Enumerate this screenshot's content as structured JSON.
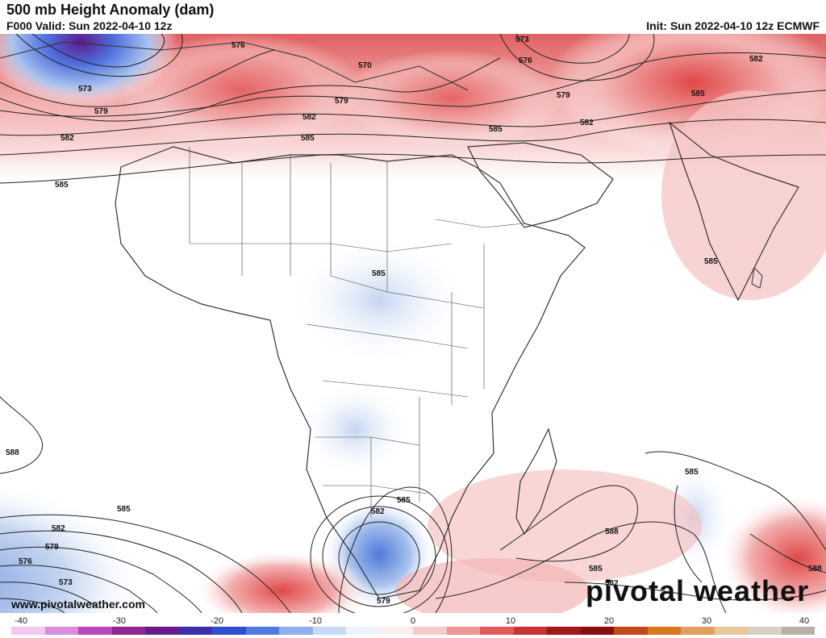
{
  "header": {
    "title": "500 mb Height Anomaly (dam)",
    "valid": "F000 Valid: Sun 2022-04-10 12z",
    "init": "Init: Sun 2022-04-10 12z ECMWF"
  },
  "footer": {
    "website": "www.pivotalweather.com",
    "brand": "pivotal weather"
  },
  "colorbar": {
    "ticks": [
      "-40",
      "-30",
      "-20",
      "-10",
      "0",
      "10",
      "20",
      "30",
      "40"
    ],
    "colors": [
      "#f0c8f0",
      "#d88ed8",
      "#b848b8",
      "#902890",
      "#6a1b8a",
      "#3a2fa8",
      "#2f4fd0",
      "#4f7ae0",
      "#8fb0ea",
      "#c9d9f3",
      "#eef2fa",
      "#fbeeee",
      "#f6c9c9",
      "#ef9595",
      "#e05a5a",
      "#c83232",
      "#a01818",
      "#8a1010",
      "#c0481a",
      "#d8781e",
      "#e0a060",
      "#e8c89a",
      "#d8cfc4",
      "#b8b0a8"
    ]
  },
  "contour_labels": [
    {
      "text": "576",
      "id": "label-576-a"
    },
    {
      "text": "573",
      "id": "label-573-a"
    },
    {
      "text": "579",
      "id": "label-579-a"
    },
    {
      "text": "582",
      "id": "label-582-a"
    },
    {
      "text": "585",
      "id": "label-585-a"
    },
    {
      "text": "570",
      "id": "label-570-a"
    },
    {
      "text": "579",
      "id": "label-579-b"
    },
    {
      "text": "582",
      "id": "label-582-b"
    },
    {
      "text": "585",
      "id": "label-585-b"
    },
    {
      "text": "573",
      "id": "label-573-b"
    },
    {
      "text": "576",
      "id": "label-576-b"
    },
    {
      "text": "579",
      "id": "label-579-c"
    },
    {
      "text": "585",
      "id": "label-585-c"
    },
    {
      "text": "582",
      "id": "label-582-c"
    },
    {
      "text": "582",
      "id": "label-582-d"
    },
    {
      "text": "585",
      "id": "label-585-d"
    },
    {
      "text": "585",
      "id": "label-585-e"
    },
    {
      "text": "585",
      "id": "label-585-f"
    },
    {
      "text": "588",
      "id": "label-588-a"
    },
    {
      "text": "585",
      "id": "label-585-g"
    },
    {
      "text": "582",
      "id": "label-582-e"
    },
    {
      "text": "579",
      "id": "label-579-d"
    },
    {
      "text": "576",
      "id": "label-576-c"
    },
    {
      "text": "573",
      "id": "label-573-c"
    },
    {
      "text": "582",
      "id": "label-582-f"
    },
    {
      "text": "585",
      "id": "label-585-h"
    },
    {
      "text": "579",
      "id": "label-579-e"
    },
    {
      "text": "588",
      "id": "label-588-b"
    },
    {
      "text": "585",
      "id": "label-585-i"
    },
    {
      "text": "585",
      "id": "label-585-j"
    },
    {
      "text": "582",
      "id": "label-582-g"
    },
    {
      "text": "588",
      "id": "label-588-c"
    }
  ]
}
